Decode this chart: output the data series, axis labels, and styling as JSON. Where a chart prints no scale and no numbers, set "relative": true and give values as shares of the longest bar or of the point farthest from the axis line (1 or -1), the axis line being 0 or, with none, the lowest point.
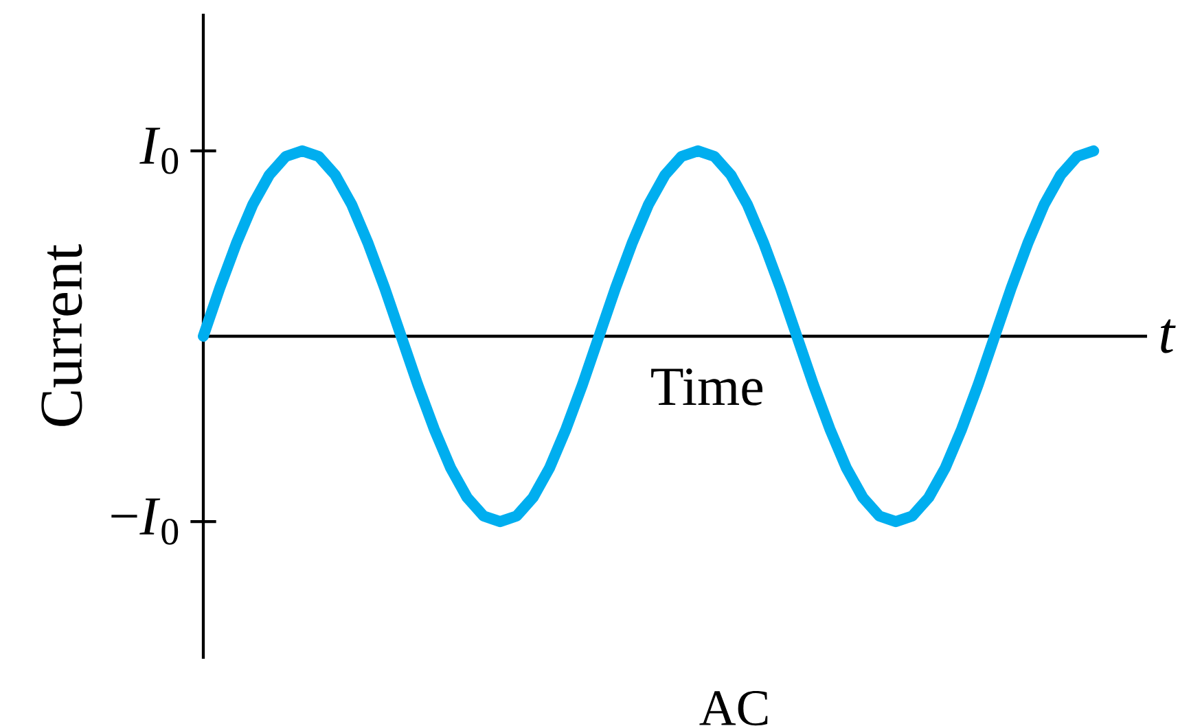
{
  "chart_data": {
    "type": "line",
    "ylabel": "Current",
    "xlabel": "Time",
    "annotations": [
      "t",
      "AC",
      "*I*$_{0}$",
      "−*I*$_{0}$"
    ],
    "relative": true,
    "categories": [
      null,
      null,
      null,
      null,
      null,
      null,
      null,
      null,
      null,
      null,
      null,
      null,
      null,
      null,
      null,
      null,
      null,
      null,
      null,
      null,
      null,
      null,
      null,
      null,
      null,
      null,
      null,
      null,
      null,
      null,
      null,
      null,
      null,
      null,
      null,
      null,
      null,
      null,
      null,
      null,
      null,
      null,
      null,
      null,
      null,
      null,
      null,
      null,
      null,
      null,
      null,
      null,
      null,
      null,
      null
    ],
    "series": [
      {
        "color": "#00aeef",
        "values": [
          0,
          0.26,
          0.5,
          0.71,
          0.87,
          0.97,
          1,
          0.97,
          0.87,
          0.71,
          0.5,
          0.26,
          0,
          -0.26,
          -0.5,
          -0.71,
          -0.87,
          -0.97,
          -1,
          -0.97,
          -0.87,
          -0.71,
          -0.5,
          -0.26,
          0,
          0.26,
          0.5,
          0.71,
          0.87,
          0.97,
          1,
          0.97,
          0.87,
          0.71,
          0.5,
          0.26,
          0,
          -0.26,
          -0.5,
          -0.71,
          -0.87,
          -0.97,
          -1,
          -0.97,
          -0.87,
          -0.71,
          -0.5,
          -0.26,
          0,
          0.26,
          0.5,
          0.71,
          0.87,
          0.97,
          1
        ]
      }
    ],
    "marker": "none",
    "line_style": "solid"
  }
}
